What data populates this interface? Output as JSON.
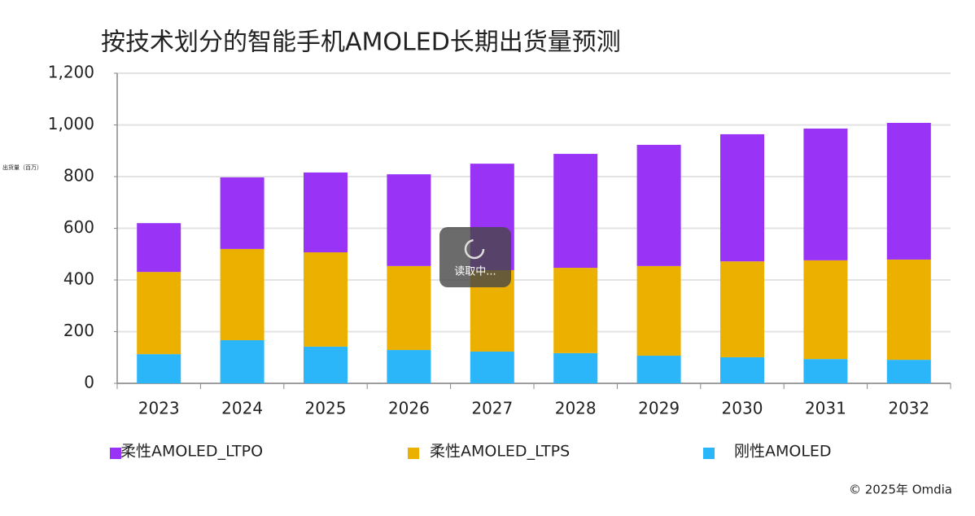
{
  "chart_data": {
    "type": "stacked_bar",
    "title": "按技术划分的智能手机AMOLED长期出货量预测",
    "ylabel": "出货量（百万）",
    "categories": [
      "2023",
      "2024",
      "2025",
      "2026",
      "2027",
      "2028",
      "2029",
      "2030",
      "2031",
      "2032"
    ],
    "series": [
      {
        "name": "柔性AMOLED_LTPO",
        "color": "#9933f5",
        "values": [
          189,
          277,
          309,
          355,
          412,
          441,
          469,
          492,
          510,
          529
        ]
      },
      {
        "name": "柔性AMOLED_LTPS",
        "color": "#ebb000",
        "values": [
          318,
          353,
          365,
          325,
          315,
          330,
          347,
          371,
          382,
          388
        ]
      },
      {
        "name": "刚性AMOLED",
        "color": "#2bb6f9",
        "values": [
          113,
          167,
          142,
          129,
          123,
          117,
          107,
          101,
          94,
          91
        ]
      }
    ],
    "ylim": [
      0,
      1200
    ],
    "yticks": [
      0,
      200,
      400,
      600,
      800,
      {
        "value": 1000,
        "label": "1,000"
      },
      {
        "value": 1200,
        "label": "1,200"
      }
    ],
    "grid": true,
    "loading_text": "读取中...",
    "copyright": "© 2025年 Omdia"
  }
}
